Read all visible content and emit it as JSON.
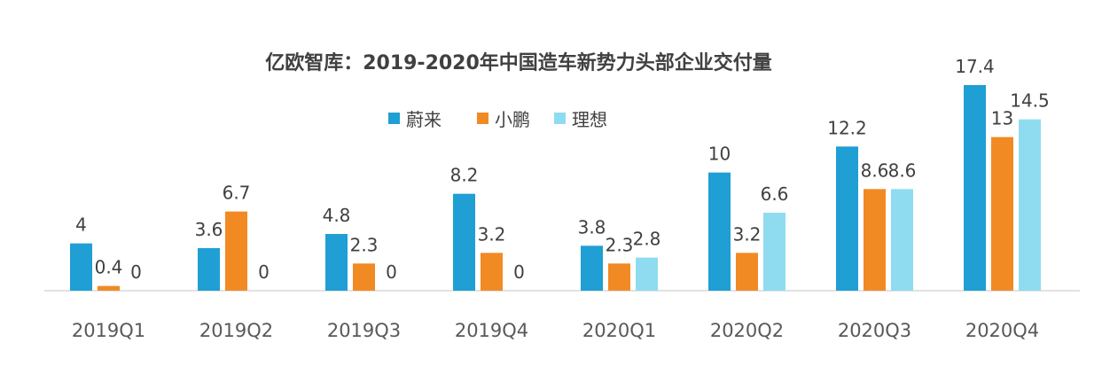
{
  "chart_data": {
    "type": "bar",
    "title": "亿欧智库：2019-2020年中国造车新势力头部企业交付量",
    "xlabel": "",
    "ylabel": "",
    "categories": [
      "2019Q1",
      "2019Q2",
      "2019Q3",
      "2019Q4",
      "2020Q1",
      "2020Q2",
      "2020Q3",
      "2020Q4"
    ],
    "series": [
      {
        "name": "蔚来",
        "color": "#1f9fd3",
        "values": [
          4,
          3.6,
          4.8,
          8.2,
          3.8,
          10,
          12.2,
          17.4
        ]
      },
      {
        "name": "小鹏",
        "color": "#f28a24",
        "values": [
          0.4,
          6.7,
          2.3,
          3.2,
          2.3,
          3.2,
          8.6,
          13
        ]
      },
      {
        "name": "理想",
        "color": "#8fdcf0",
        "values": [
          0,
          0,
          0,
          0,
          2.8,
          6.6,
          8.6,
          14.5
        ]
      }
    ],
    "ylim": [
      0,
      17.4
    ],
    "grid": false,
    "legend_position": "top-center",
    "axis_color": "#d9d9d9"
  }
}
